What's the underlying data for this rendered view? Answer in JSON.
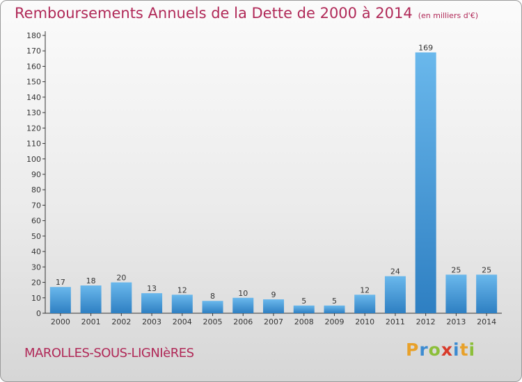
{
  "title": "Remboursements Annuels de la Dette de 2000 à 2014",
  "unit": "(en milliers d'€)",
  "commune": "MAROLLES-SOUS-LIGNIèRES",
  "logo": {
    "letters": [
      "P",
      "r",
      "o",
      "x",
      "i",
      "t",
      "i"
    ],
    "colors": [
      "#e8a12a",
      "#3c8bd1",
      "#8cbf3a",
      "#d83a2a",
      "#3c8bd1",
      "#e8a12a",
      "#8cbf3a"
    ]
  },
  "colors": {
    "bar_light": "#6ab8ec",
    "bar_dark": "#2e7fc2",
    "title": "#b02857",
    "axis": "#333333"
  },
  "chart_data": {
    "type": "bar",
    "categories": [
      "2000",
      "2001",
      "2002",
      "2003",
      "2004",
      "2005",
      "2006",
      "2007",
      "2008",
      "2009",
      "2010",
      "2011",
      "2012",
      "2013",
      "2014"
    ],
    "values": [
      17,
      18,
      20,
      13,
      12,
      8,
      10,
      9,
      5,
      5,
      12,
      24,
      169,
      25,
      25
    ],
    "ylim": [
      0,
      180
    ],
    "yticks": [
      0,
      10,
      20,
      30,
      40,
      50,
      60,
      70,
      80,
      90,
      100,
      110,
      120,
      130,
      140,
      150,
      160,
      170,
      180
    ],
    "grid": false,
    "data_labels": true
  }
}
